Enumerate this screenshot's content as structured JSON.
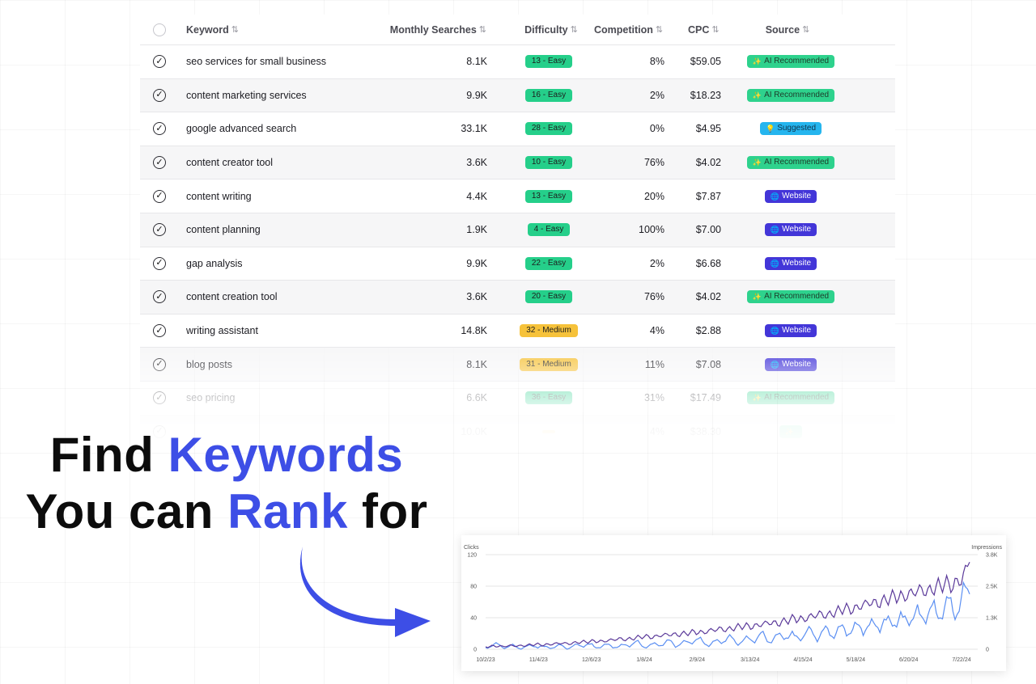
{
  "table": {
    "headers": {
      "keyword": "Keyword",
      "monthly_searches": "Monthly Searches",
      "difficulty": "Difficulty",
      "competition": "Competition",
      "cpc": "CPC",
      "source": "Source"
    },
    "sort_icon": "sort-icon",
    "rows": [
      {
        "keyword": "seo services for small business",
        "searches": "8.1K",
        "difficulty": "13 - Easy",
        "level": "easy",
        "competition": "8%",
        "cpc": "$59.05",
        "source": "AI Recommended",
        "source_type": "ai",
        "source_icon": "sparkles-icon"
      },
      {
        "keyword": "content marketing services",
        "searches": "9.9K",
        "difficulty": "16 - Easy",
        "level": "easy",
        "competition": "2%",
        "cpc": "$18.23",
        "source": "AI Recommended",
        "source_type": "ai",
        "source_icon": "sparkles-icon"
      },
      {
        "keyword": "google advanced search",
        "searches": "33.1K",
        "difficulty": "28 - Easy",
        "level": "easy",
        "competition": "0%",
        "cpc": "$4.95",
        "source": "Suggested",
        "source_type": "sug",
        "source_icon": "lightbulb-icon"
      },
      {
        "keyword": "content creator tool",
        "searches": "3.6K",
        "difficulty": "10 - Easy",
        "level": "easy",
        "competition": "76%",
        "cpc": "$4.02",
        "source": "AI Recommended",
        "source_type": "ai",
        "source_icon": "sparkles-icon"
      },
      {
        "keyword": "content writing",
        "searches": "4.4K",
        "difficulty": "13 - Easy",
        "level": "easy",
        "competition": "20%",
        "cpc": "$7.87",
        "source": "Website",
        "source_type": "web",
        "source_icon": "globe-icon"
      },
      {
        "keyword": "content planning",
        "searches": "1.9K",
        "difficulty": "4 - Easy",
        "level": "easy",
        "competition": "100%",
        "cpc": "$7.00",
        "source": "Website",
        "source_type": "web",
        "source_icon": "globe-icon"
      },
      {
        "keyword": "gap analysis",
        "searches": "9.9K",
        "difficulty": "22 - Easy",
        "level": "easy",
        "competition": "2%",
        "cpc": "$6.68",
        "source": "Website",
        "source_type": "web",
        "source_icon": "globe-icon"
      },
      {
        "keyword": "content creation tool",
        "searches": "3.6K",
        "difficulty": "20 - Easy",
        "level": "easy",
        "competition": "76%",
        "cpc": "$4.02",
        "source": "AI Recommended",
        "source_type": "ai",
        "source_icon": "sparkles-icon"
      },
      {
        "keyword": "writing assistant",
        "searches": "14.8K",
        "difficulty": "32 - Medium",
        "level": "medium",
        "competition": "4%",
        "cpc": "$2.88",
        "source": "Website",
        "source_type": "web",
        "source_icon": "globe-icon"
      },
      {
        "keyword": "blog posts",
        "searches": "8.1K",
        "difficulty": "31 - Medium",
        "level": "medium",
        "competition": "11%",
        "cpc": "$7.08",
        "source": "Website",
        "source_type": "web",
        "source_icon": "globe-icon"
      },
      {
        "keyword": "seo pricing",
        "searches": "6.6K",
        "difficulty": "36 - Easy",
        "level": "easy",
        "competition": "31%",
        "cpc": "$17.49",
        "source": "AI Recommended",
        "source_type": "ai",
        "source_icon": "sparkles-icon"
      },
      {
        "keyword": "",
        "searches": "10.0K",
        "difficulty": "",
        "level": "medium",
        "competition": "4%",
        "cpc": "$38.30",
        "source": "",
        "source_type": "ai",
        "source_icon": "sparkles-icon"
      }
    ]
  },
  "headline": {
    "line1_a": "Find",
    "line1_b": "Keywords",
    "line2_a": "You can",
    "line2_b": "Rank",
    "line2_c": "for",
    "accent_color": "#3d4ee6"
  },
  "chart_data": {
    "type": "line",
    "left_axis_label": "Clicks",
    "right_axis_label": "Impressions",
    "left_ticks": [
      "0",
      "40",
      "80",
      "120"
    ],
    "right_ticks": [
      "0",
      "1.3K",
      "2.5K",
      "3.8K"
    ],
    "ylim_left": [
      0,
      120
    ],
    "ylim_right": [
      0,
      3800
    ],
    "x_ticks": [
      "10/2/23",
      "11/4/23",
      "12/6/23",
      "1/8/24",
      "2/9/24",
      "3/13/24",
      "4/15/24",
      "5/18/24",
      "6/20/24",
      "7/22/24"
    ],
    "grid": true,
    "series": [
      {
        "name": "Clicks",
        "color": "#5b8ff2",
        "axis": "left",
        "points_per_tick": "approx",
        "values": [
          2,
          6,
          3,
          4,
          2,
          3,
          5,
          2,
          3,
          4,
          2,
          5,
          6,
          3,
          4,
          5,
          3,
          6,
          8,
          4,
          5,
          7,
          9,
          6,
          8,
          12,
          9,
          7,
          10,
          14,
          9,
          11,
          13,
          17,
          12,
          15,
          19,
          14,
          18,
          22,
          17,
          25,
          20,
          28,
          23,
          31,
          26,
          35,
          30,
          40,
          33,
          45,
          38,
          50,
          42,
          56,
          48,
          62,
          70
        ]
      },
      {
        "name": "Impressions",
        "color": "#5b3a9a",
        "axis": "right",
        "values": [
          100,
          130,
          110,
          150,
          130,
          160,
          200,
          170,
          210,
          250,
          220,
          280,
          300,
          330,
          310,
          370,
          420,
          390,
          460,
          520,
          480,
          560,
          600,
          580,
          640,
          700,
          660,
          760,
          820,
          780,
          880,
          940,
          900,
          1000,
          1080,
          1020,
          1150,
          1250,
          1180,
          1320,
          1420,
          1350,
          1500,
          1650,
          1580,
          1750,
          1900,
          1820,
          2000,
          2150,
          2080,
          2250,
          2400,
          2300,
          2500,
          2650,
          2550,
          2800,
          3500
        ]
      }
    ]
  }
}
